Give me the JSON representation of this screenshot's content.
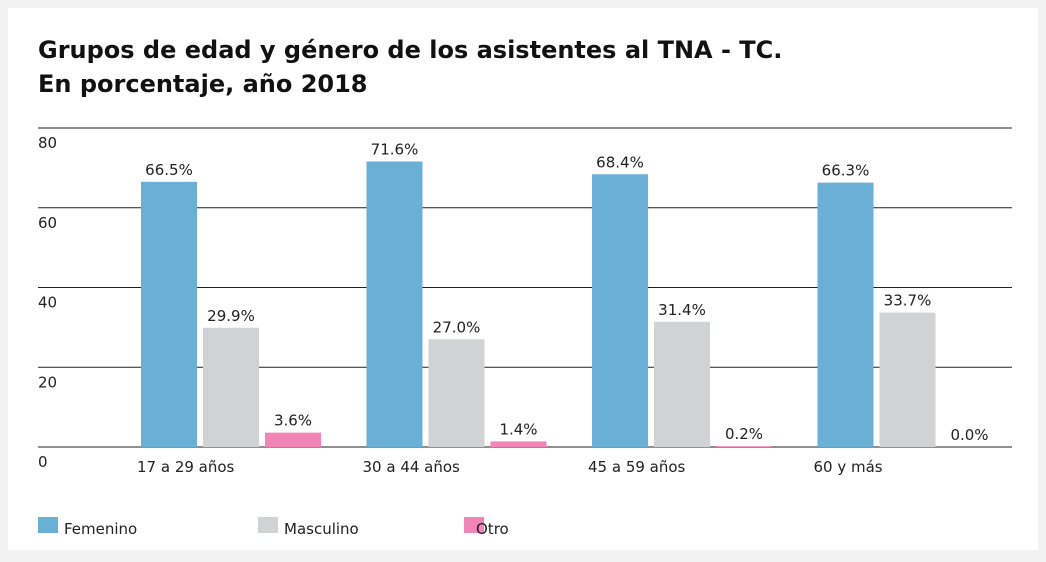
{
  "chart_data": {
    "type": "bar",
    "title": [
      "Grupos de edad y género de los asistentes al TNA - TC.",
      "En porcentaje, año 2018"
    ],
    "categories": [
      "17 a 29 años",
      "30 a 44 años",
      "45 a 59 años",
      "60 y más"
    ],
    "series": [
      {
        "name": "Femenino",
        "color": "#6ab0d6",
        "values": [
          66.5,
          71.6,
          68.4,
          66.3
        ],
        "value_labels": [
          "66.5%",
          "71.6%",
          "68.4%",
          "66.3%"
        ]
      },
      {
        "name": "Masculino",
        "color": "#d1d2d4",
        "values": [
          29.9,
          27.0,
          31.4,
          33.7
        ],
        "value_labels": [
          "29.9%",
          "27.0%",
          "31.4%",
          "33.7%"
        ]
      },
      {
        "name": "Otro",
        "color": "#f285b7",
        "values": [
          3.6,
          1.4,
          0.2,
          0.0
        ],
        "value_labels": [
          "3.6%",
          "1.4%",
          "0.2%",
          "0.0%"
        ]
      }
    ],
    "ylim": [
      0,
      80
    ],
    "yticks": [
      0,
      20,
      40,
      60,
      80
    ],
    "grid": true
  }
}
